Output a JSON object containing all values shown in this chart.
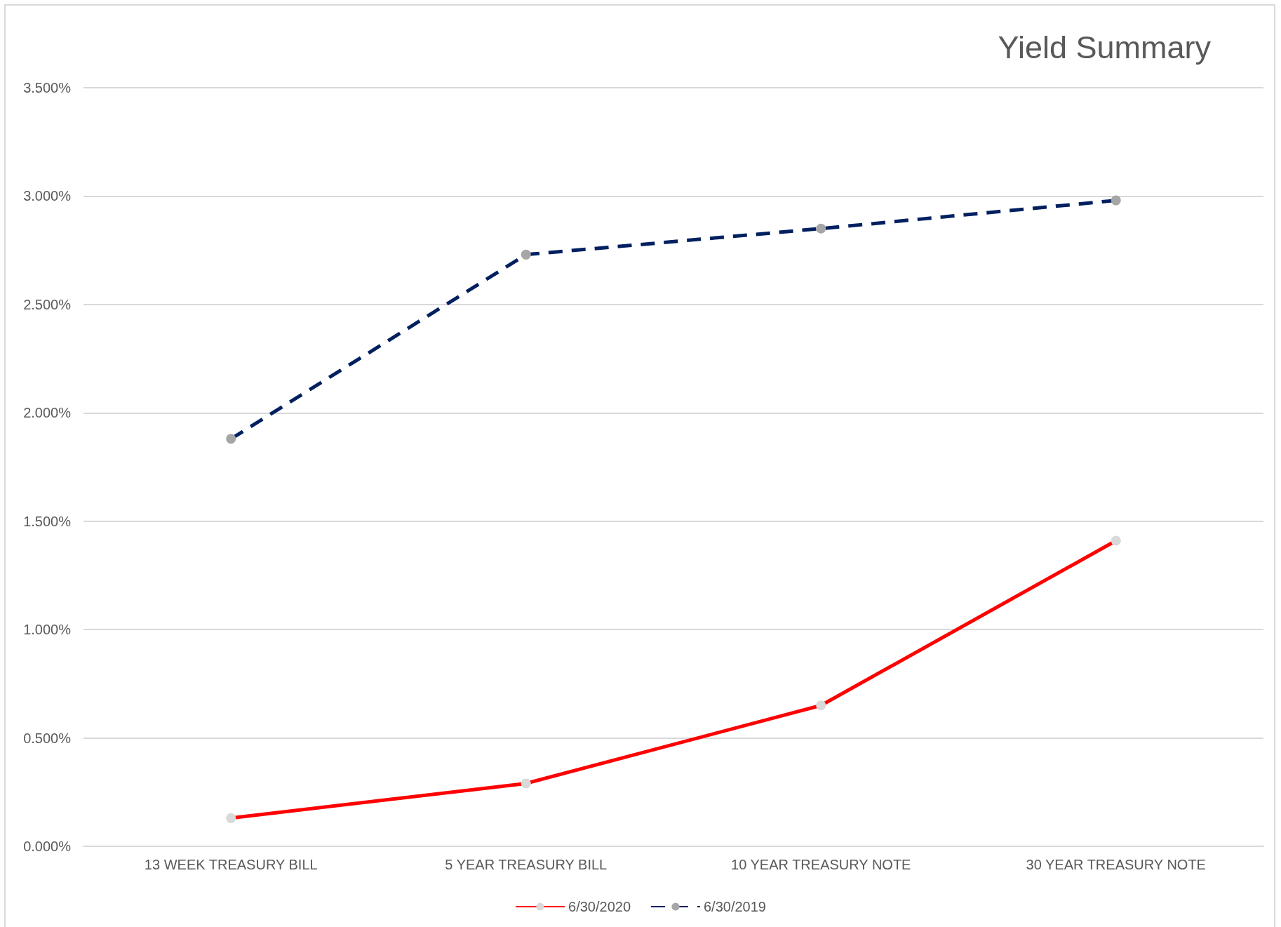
{
  "chart_data": {
    "type": "line",
    "title": "Yield Summary",
    "categories": [
      "13 WEEK TREASURY BILL",
      "5 YEAR TREASURY BILL",
      "10 YEAR TREASURY NOTE",
      "30 YEAR TREASURY NOTE"
    ],
    "series": [
      {
        "name": "6/30/2020",
        "color": "#ff0000",
        "line_style": "solid",
        "values": [
          0.13,
          0.29,
          0.65,
          1.41
        ]
      },
      {
        "name": "6/30/2019",
        "color": "#002060",
        "line_style": "dashed",
        "values": [
          1.88,
          2.73,
          2.85,
          2.98
        ]
      }
    ],
    "ylim": [
      0,
      3.5
    ],
    "yticks": [
      {
        "value": 0,
        "label": "0.000%"
      },
      {
        "value": 0.5,
        "label": "0.500%"
      },
      {
        "value": 1,
        "label": "1.000%"
      },
      {
        "value": 1.5,
        "label": "1.500%"
      },
      {
        "value": 2,
        "label": "2.000%"
      },
      {
        "value": 2.5,
        "label": "2.500%"
      },
      {
        "value": 3,
        "label": "3.000%"
      },
      {
        "value": 3.5,
        "label": "3.500%"
      }
    ],
    "grid": "y",
    "legend": "bottom",
    "marker": "circle"
  }
}
